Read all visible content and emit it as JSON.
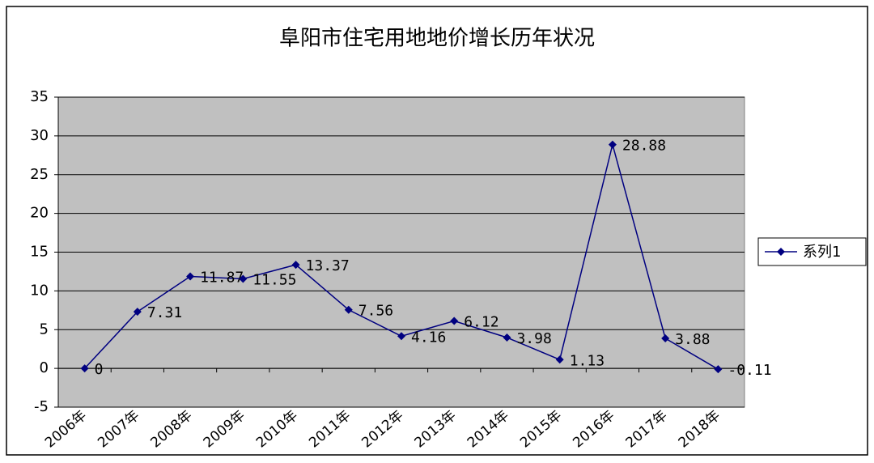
{
  "chart_data": {
    "type": "line",
    "title": "阜阳市住宅用地地价增长历年状况",
    "categories": [
      "2006年",
      "2007年",
      "2008年",
      "2009年",
      "2010年",
      "2011年",
      "2012年",
      "2013年",
      "2014年",
      "2015年",
      "2016年",
      "2017年",
      "2018年"
    ],
    "series": [
      {
        "name": "系列1",
        "color": "#000080",
        "values": [
          0,
          7.31,
          11.87,
          11.55,
          13.37,
          7.56,
          4.16,
          6.12,
          3.98,
          1.13,
          28.88,
          3.88,
          -0.11
        ]
      }
    ],
    "ylim": [
      -5,
      35
    ],
    "yticks": [
      -5,
      0,
      5,
      10,
      15,
      20,
      25,
      30,
      35
    ],
    "grid": true,
    "legend": "right"
  }
}
